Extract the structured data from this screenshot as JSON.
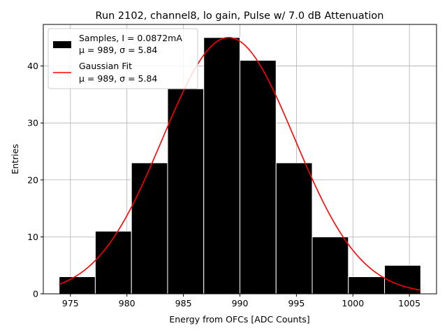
{
  "chart_data": {
    "type": "bar",
    "title": "Run 2102, channel8, lo gain, Pulse w/ 7.0 dB Attenuation",
    "xlabel": "Energy from OFCs [ADC Counts]",
    "ylabel": "Entries",
    "xlim": [
      972.6,
      1007.4
    ],
    "ylim": [
      0,
      47.3
    ],
    "xticks": [
      975,
      980,
      985,
      990,
      995,
      1000,
      1005
    ],
    "yticks": [
      0,
      10,
      20,
      30,
      40
    ],
    "grid": true,
    "bin_edges": [
      974.0,
      977.2,
      980.4,
      983.6,
      986.8,
      990.0,
      993.2,
      996.4,
      999.6,
      1002.8,
      1006.0
    ],
    "counts": [
      3,
      11,
      23,
      36,
      45,
      41,
      23,
      10,
      3,
      5
    ],
    "fit": {
      "type": "gaussian",
      "mu": 989,
      "sigma": 5.84,
      "amplitude": 45,
      "x_range": [
        974.0,
        1006.0
      ]
    },
    "legend": {
      "placement": "top-left",
      "entries": [
        {
          "name": "Samples, I = 0.0872mA",
          "detail": "μ = 989, σ = 5.84",
          "color": "#000000"
        },
        {
          "name": "Gaussian Fit",
          "detail": "μ = 989, σ = 5.84",
          "color": "#ff0000"
        }
      ]
    }
  }
}
